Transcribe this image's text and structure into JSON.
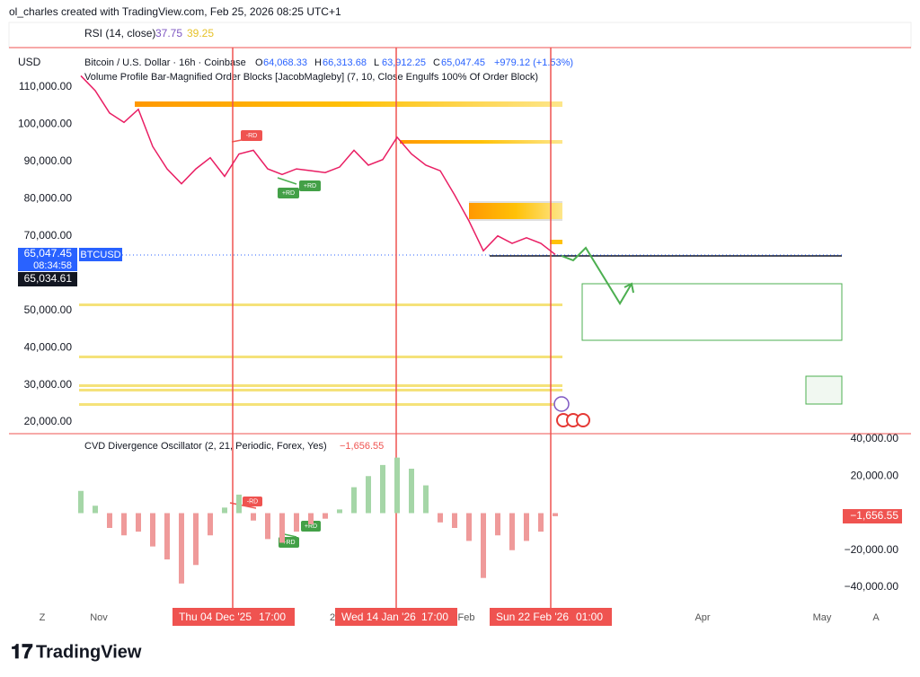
{
  "header": {
    "credit": "ol_charles created with TradingView.com, Feb 25, 2026 08:25 UTC+1"
  },
  "rsi": {
    "title": "RSI (14, close)",
    "values": [
      "37.75",
      "39.25"
    ]
  },
  "legend": {
    "symbol": "Bitcoin / U.S. Dollar · 16h · Coinbase",
    "ohlc": [
      {
        "prefix": "O",
        "value": "64,068.33"
      },
      {
        "prefix": "H",
        "value": "66,313.68"
      },
      {
        "prefix": "L",
        "value": "63,912.25"
      },
      {
        "prefix": "C",
        "value": "65,047.45"
      }
    ],
    "change": "+979.12 (+1.53%)",
    "indicator": "Volume Profile Bar-Magnified Order Blocks [JacobMagleby] (7, 10, Close Engulfs 100% Of Order Block)"
  },
  "price_labels": {
    "currency": "USD",
    "last": "65,047.45",
    "countdown": "08:34:58",
    "symbol": "BTCUSD",
    "cursor": "65,034.61"
  },
  "signals": {
    "bearish": "-RD",
    "bullish": "+RD"
  },
  "time_axis": {
    "labels": [
      "Z",
      "Nov",
      "2",
      "Feb",
      "Apr",
      "May",
      "A"
    ],
    "markers": [
      {
        "date": "Thu 04 Dec '25",
        "time": "17:00"
      },
      {
        "date": "Wed 14 Jan '26",
        "time": "17:00"
      },
      {
        "date": "Sun 22 Feb '26",
        "time": "01:00"
      }
    ]
  },
  "footer": {
    "logo": "TradingView"
  },
  "chart_data": [
    {
      "type": "line",
      "color": "#e91e63",
      "grid": false,
      "values": [
        113000,
        109000,
        103000,
        100500,
        104000,
        94000,
        88000,
        84000,
        88000,
        91000,
        86000,
        92000,
        93000,
        88000,
        86500,
        88000,
        87500,
        87000,
        88500,
        93000,
        89000,
        90500,
        96500,
        92000,
        89000,
        87500,
        81000,
        74000,
        66000,
        70000,
        68000,
        69500,
        68000,
        65000
      ],
      "ylim": [
        17600,
        120100
      ],
      "yticks": [
        {
          "value": 110000,
          "label": "110,000.00"
        },
        {
          "value": 100000,
          "label": "100,000.00"
        },
        {
          "value": 90000,
          "label": "90,000.00"
        },
        {
          "value": 80000,
          "label": "80,000.00"
        },
        {
          "value": 70000,
          "label": "70,000.00"
        },
        {
          "value": 50000,
          "label": "50,000.00"
        },
        {
          "value": 40000,
          "label": "40,000.00"
        },
        {
          "value": 30000,
          "label": "30,000.00"
        },
        {
          "value": 20000,
          "label": "20,000.00"
        }
      ]
    },
    {
      "type": "bar",
      "title": "CVD Divergence Oscillator (2, 21, Periodic, Forex, Yes)",
      "colors": {
        "up": "#a5d6a7",
        "down": "#ef9a9a"
      },
      "grid": false,
      "values": [
        12000,
        4000,
        -8000,
        -12000,
        -10000,
        -18000,
        -25000,
        -38000,
        -28000,
        -12000,
        3000,
        10000,
        -4000,
        -14000,
        -16000,
        -10000,
        -6000,
        -3000,
        2000,
        14000,
        20000,
        26000,
        30000,
        24000,
        15000,
        -5000,
        -8000,
        -15000,
        -35000,
        -12000,
        -20000,
        -15000,
        -10000,
        -1656.55
      ],
      "value_labels": [
        null,
        null,
        null,
        null,
        null,
        null,
        null,
        null,
        null,
        null,
        null,
        null,
        null,
        null,
        null,
        null,
        null,
        null,
        null,
        null,
        null,
        null,
        null,
        null,
        null,
        null,
        null,
        null,
        null,
        null,
        null,
        null,
        null,
        "−1,656.55"
      ],
      "ylim": [
        -50180,
        41940
      ],
      "yticks": [
        {
          "value": 40000,
          "label": "40,000.00"
        },
        {
          "value": 20000,
          "label": "20,000.00"
        },
        {
          "value": -20000,
          "label": "−20,000.00"
        },
        {
          "value": -40000,
          "label": "−40,000.00"
        }
      ]
    }
  ]
}
